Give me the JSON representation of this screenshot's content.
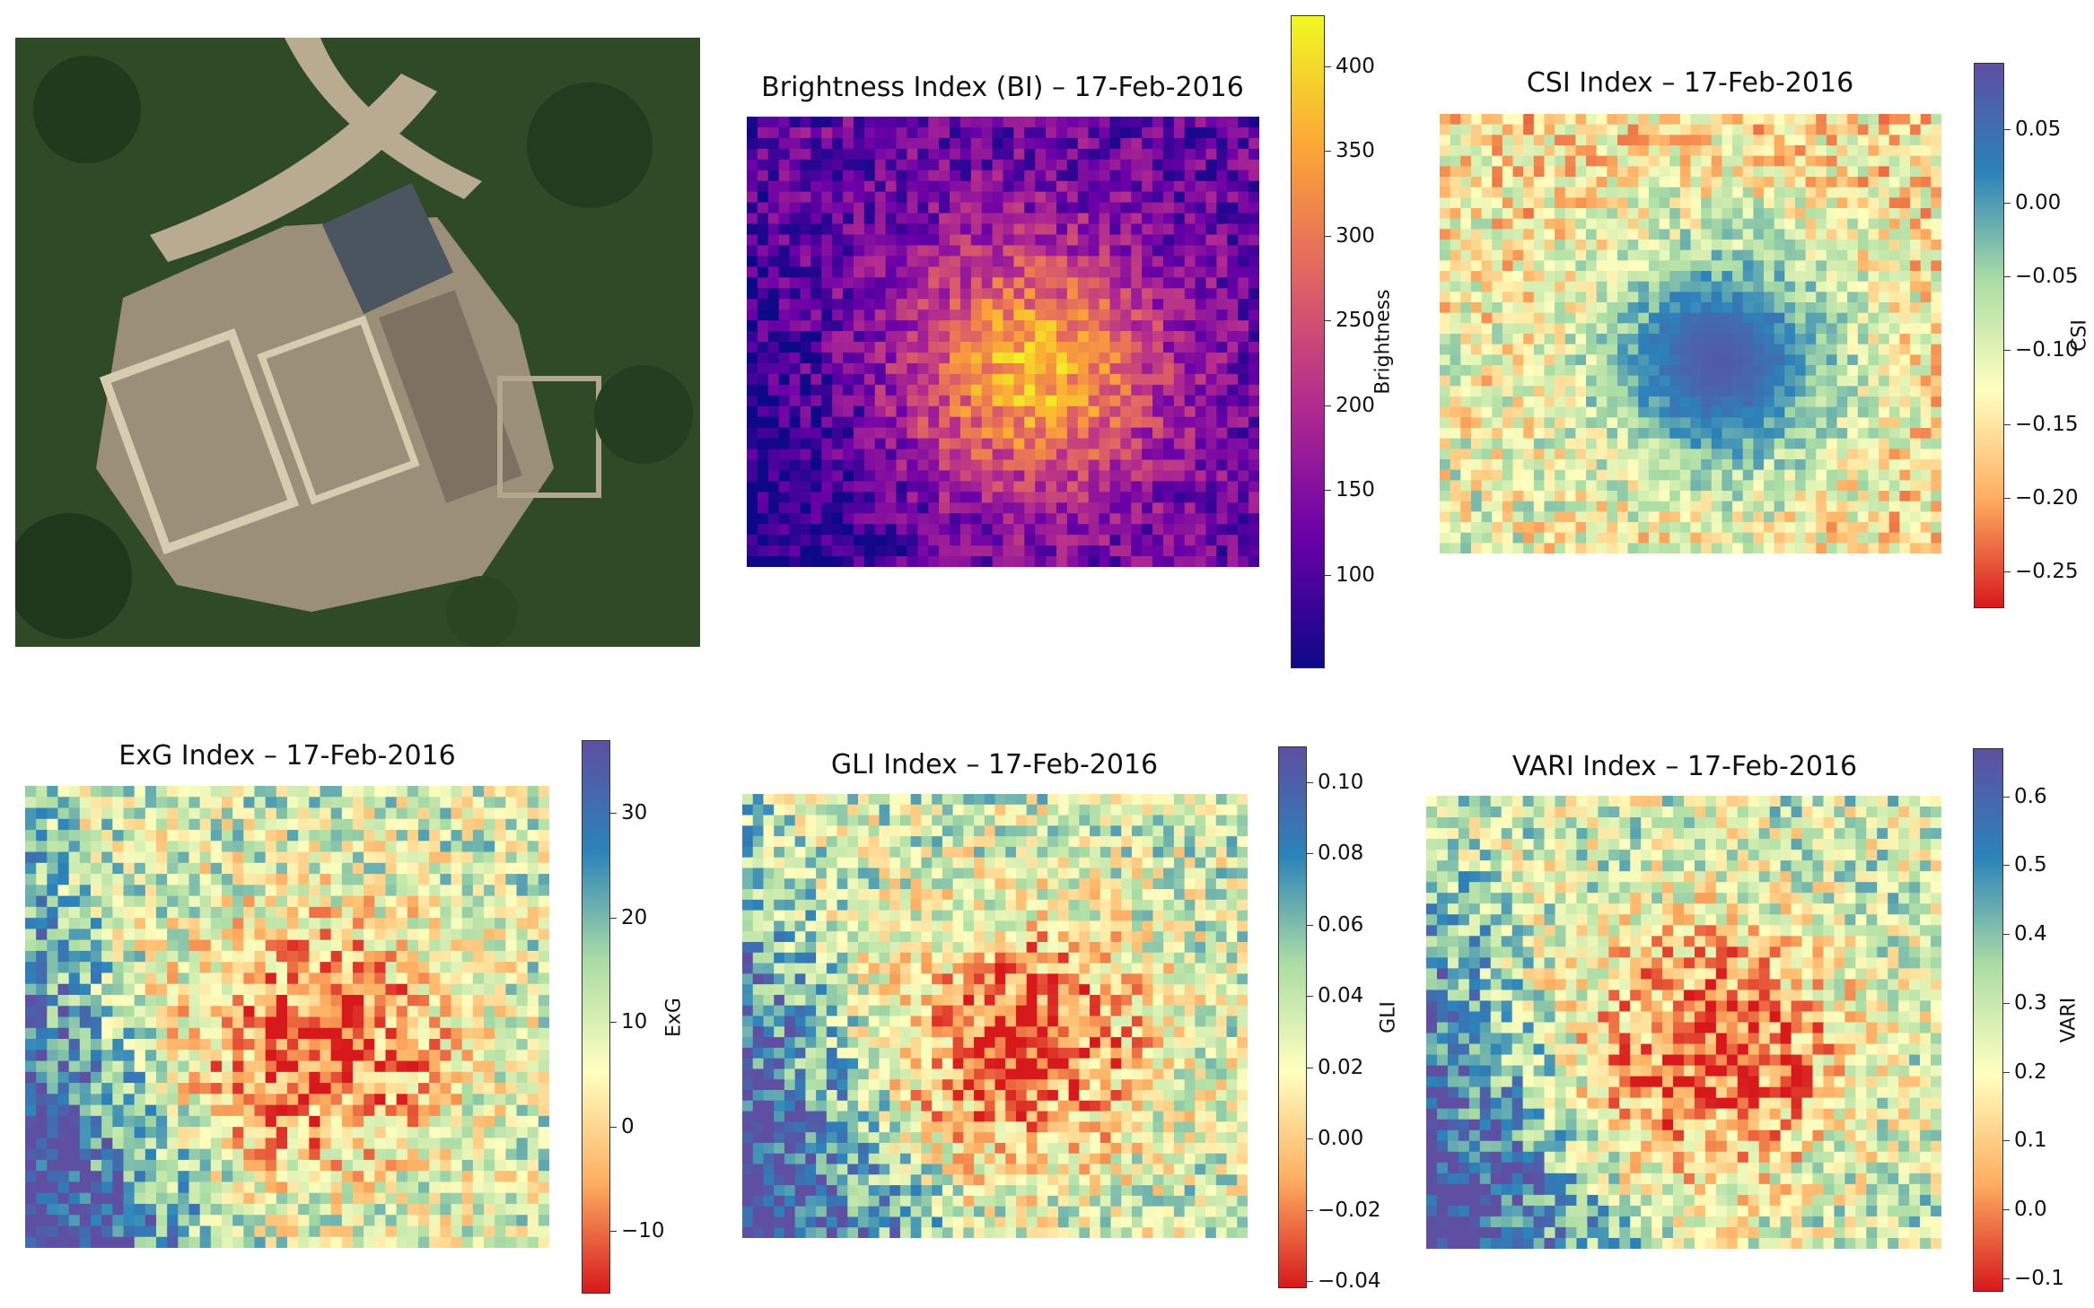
{
  "chart_data": [
    {
      "type": "heatmap",
      "panel": "aerial-photo",
      "title": "",
      "colors": {
        "base": "#9b8f79",
        "vegetation": "#2f4a26",
        "roof": "#4a5560",
        "path": "#c8bba0"
      }
    },
    {
      "type": "heatmap",
      "panel": "brightness-index",
      "title": "Brightness Index (BI) – 17-Feb-2016",
      "colorbar_label": "Brightness",
      "colormap": "plasma",
      "colormap_stops": [
        "#0d0887",
        "#6a00a8",
        "#b12a90",
        "#e16462",
        "#fca636",
        "#f0f921"
      ],
      "range": [
        45,
        430
      ],
      "ticks": [
        {
          "value": 100,
          "label": "100"
        },
        {
          "value": 150,
          "label": "150"
        },
        {
          "value": 200,
          "label": "200"
        },
        {
          "value": 250,
          "label": "250"
        },
        {
          "value": 300,
          "label": "300"
        },
        {
          "value": 350,
          "label": "350"
        },
        {
          "value": 400,
          "label": "400"
        }
      ]
    },
    {
      "type": "heatmap",
      "panel": "csi-index",
      "title": "CSI Index – 17-Feb-2016",
      "colorbar_label": "CSI",
      "colormap": "Spectral",
      "colormap_stops": [
        "#d7191c",
        "#fdae61",
        "#ffffbf",
        "#abdda4",
        "#2b83ba",
        "#5e4fa2"
      ],
      "range": [
        -0.275,
        0.095
      ],
      "ticks": [
        {
          "value": -0.25,
          "label": "−0.25"
        },
        {
          "value": -0.2,
          "label": "−0.20"
        },
        {
          "value": -0.15,
          "label": "−0.15"
        },
        {
          "value": -0.1,
          "label": "−0.10"
        },
        {
          "value": -0.05,
          "label": "−0.05"
        },
        {
          "value": 0.0,
          "label": "0.00"
        },
        {
          "value": 0.05,
          "label": "0.05"
        }
      ]
    },
    {
      "type": "heatmap",
      "panel": "exg-index",
      "title": "ExG Index – 17-Feb-2016",
      "colorbar_label": "ExG",
      "colormap": "Spectral",
      "colormap_stops": [
        "#d7191c",
        "#fdae61",
        "#ffffbf",
        "#abdda4",
        "#2b83ba",
        "#5e4fa2"
      ],
      "range": [
        -16,
        37
      ],
      "ticks": [
        {
          "value": -10,
          "label": "−10"
        },
        {
          "value": 0,
          "label": "0"
        },
        {
          "value": 10,
          "label": "10"
        },
        {
          "value": 20,
          "label": "20"
        },
        {
          "value": 30,
          "label": "30"
        }
      ]
    },
    {
      "type": "heatmap",
      "panel": "gli-index",
      "title": "GLI Index – 17-Feb-2016",
      "colorbar_label": "GLI",
      "colormap": "Spectral",
      "colormap_stops": [
        "#d7191c",
        "#fdae61",
        "#ffffbf",
        "#abdda4",
        "#2b83ba",
        "#5e4fa2"
      ],
      "range": [
        -0.042,
        0.11
      ],
      "ticks": [
        {
          "value": -0.04,
          "label": "−0.04"
        },
        {
          "value": -0.02,
          "label": "−0.02"
        },
        {
          "value": 0.0,
          "label": "0.00"
        },
        {
          "value": 0.02,
          "label": "0.02"
        },
        {
          "value": 0.04,
          "label": "0.04"
        },
        {
          "value": 0.06,
          "label": "0.06"
        },
        {
          "value": 0.08,
          "label": "0.08"
        },
        {
          "value": 0.1,
          "label": "0.10"
        }
      ]
    },
    {
      "type": "heatmap",
      "panel": "vari-index",
      "title": "VARI Index – 17-Feb-2016",
      "colorbar_label": "VARI",
      "colormap": "Spectral",
      "colormap_stops": [
        "#d7191c",
        "#fdae61",
        "#ffffbf",
        "#abdda4",
        "#2b83ba",
        "#5e4fa2"
      ],
      "range": [
        -0.12,
        0.67
      ],
      "ticks": [
        {
          "value": -0.1,
          "label": "−0.1"
        },
        {
          "value": 0.0,
          "label": "0.0"
        },
        {
          "value": 0.1,
          "label": "0.1"
        },
        {
          "value": 0.2,
          "label": "0.2"
        },
        {
          "value": 0.3,
          "label": "0.3"
        },
        {
          "value": 0.4,
          "label": "0.4"
        },
        {
          "value": 0.5,
          "label": "0.5"
        },
        {
          "value": 0.6,
          "label": "0.6"
        }
      ]
    }
  ]
}
